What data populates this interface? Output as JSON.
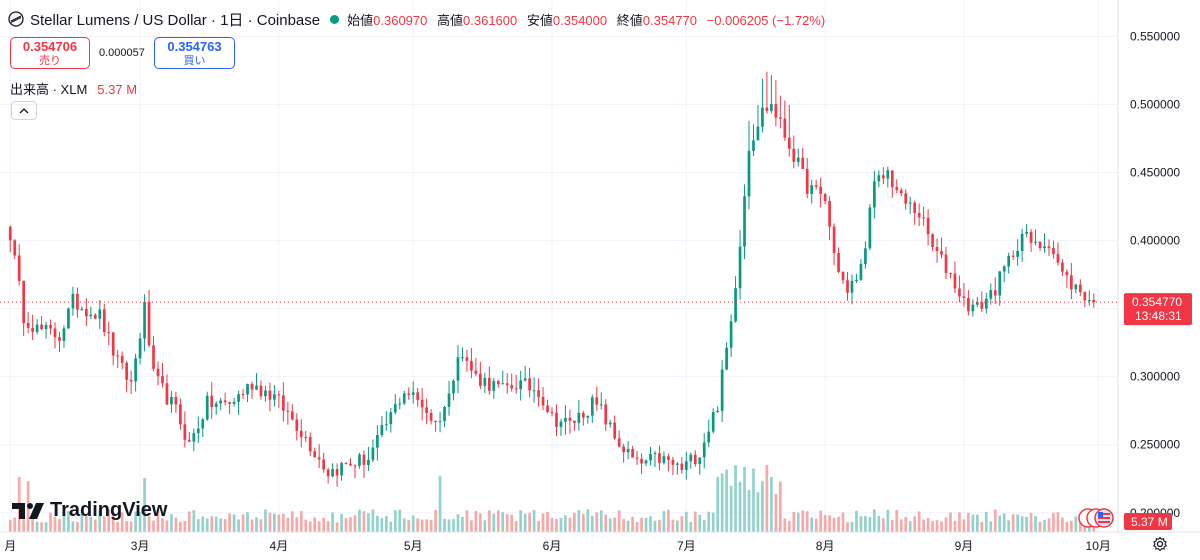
{
  "header": {
    "title": "Stellar Lumens / US Dollar · 1日 · Coinbase",
    "open_label": "始値",
    "open_value": "0.360970",
    "high_label": "高値",
    "high_value": "0.361600",
    "low_label": "安値",
    "low_value": "0.354000",
    "close_label": "終値",
    "close_value": "0.354770",
    "change": "−0.006205 (−1.72%)"
  },
  "trade": {
    "sell_price": "0.354706",
    "sell_label": "売り",
    "spread": "0.000057",
    "buy_price": "0.354763",
    "buy_label": "買い"
  },
  "volume_legend": {
    "label": "出来高 · XLM",
    "value": "5.37 M"
  },
  "brand": {
    "name": "TradingView"
  },
  "colors": {
    "up": "#089981",
    "down": "#f23645",
    "up_volume": "#92d2cc",
    "down_volume": "#f7a9a7"
  },
  "icons": [
    "stellar-icon",
    "chevron-up-icon",
    "tradingview-logo-icon",
    "flag-icon",
    "gear-icon"
  ],
  "chart_data": {
    "type": "candlestick",
    "title": "Stellar Lumens / US Dollar · 1日 · Coinbase",
    "y_ticks": [
      "0.550000",
      "0.500000",
      "0.450000",
      "0.400000",
      "0.350000",
      "0.300000",
      "0.250000",
      "0.200000"
    ],
    "ylim": [
      0.18,
      0.565
    ],
    "x_ticks": [
      {
        "label": "月",
        "index": 0
      },
      {
        "label": "3月",
        "index": 29
      },
      {
        "label": "4月",
        "index": 60
      },
      {
        "label": "5月",
        "index": 90
      },
      {
        "label": "6月",
        "index": 121
      },
      {
        "label": "7月",
        "index": 151
      },
      {
        "label": "8月",
        "index": 182
      },
      {
        "label": "9月",
        "index": 213
      },
      {
        "label": "10月",
        "index": 243
      }
    ],
    "n_days": 243,
    "key_closes": [
      [
        0,
        0.405
      ],
      [
        3,
        0.345
      ],
      [
        6,
        0.335
      ],
      [
        11,
        0.33
      ],
      [
        14,
        0.355
      ],
      [
        20,
        0.345
      ],
      [
        24,
        0.31
      ],
      [
        27,
        0.295
      ],
      [
        30,
        0.35
      ],
      [
        32,
        0.3
      ],
      [
        37,
        0.275
      ],
      [
        40,
        0.25
      ],
      [
        44,
        0.28
      ],
      [
        49,
        0.28
      ],
      [
        54,
        0.295
      ],
      [
        59,
        0.285
      ],
      [
        64,
        0.265
      ],
      [
        68,
        0.245
      ],
      [
        71,
        0.23
      ],
      [
        75,
        0.235
      ],
      [
        80,
        0.24
      ],
      [
        84,
        0.265
      ],
      [
        88,
        0.29
      ],
      [
        92,
        0.28
      ],
      [
        95,
        0.265
      ],
      [
        98,
        0.285
      ],
      [
        100,
        0.32
      ],
      [
        104,
        0.3
      ],
      [
        110,
        0.29
      ],
      [
        113,
        0.295
      ],
      [
        118,
        0.29
      ],
      [
        121,
        0.27
      ],
      [
        125,
        0.265
      ],
      [
        130,
        0.28
      ],
      [
        132,
        0.275
      ],
      [
        135,
        0.255
      ],
      [
        140,
        0.235
      ],
      [
        145,
        0.24
      ],
      [
        150,
        0.232
      ],
      [
        154,
        0.245
      ],
      [
        158,
        0.28
      ],
      [
        161,
        0.34
      ],
      [
        163,
        0.4
      ],
      [
        165,
        0.47
      ],
      [
        168,
        0.495
      ],
      [
        170,
        0.5
      ],
      [
        174,
        0.47
      ],
      [
        178,
        0.44
      ],
      [
        182,
        0.43
      ],
      [
        184,
        0.39
      ],
      [
        187,
        0.36
      ],
      [
        190,
        0.38
      ],
      [
        193,
        0.44
      ],
      [
        196,
        0.45
      ],
      [
        199,
        0.43
      ],
      [
        203,
        0.42
      ],
      [
        206,
        0.395
      ],
      [
        210,
        0.375
      ],
      [
        213,
        0.355
      ],
      [
        216,
        0.35
      ],
      [
        220,
        0.365
      ],
      [
        223,
        0.385
      ],
      [
        226,
        0.405
      ],
      [
        229,
        0.395
      ],
      [
        232,
        0.4
      ],
      [
        235,
        0.375
      ],
      [
        238,
        0.365
      ],
      [
        240,
        0.36
      ],
      [
        242,
        0.35477
      ]
    ],
    "last_close": "0.354770",
    "countdown": "13:48:31",
    "volume_last": "5.37 M"
  }
}
